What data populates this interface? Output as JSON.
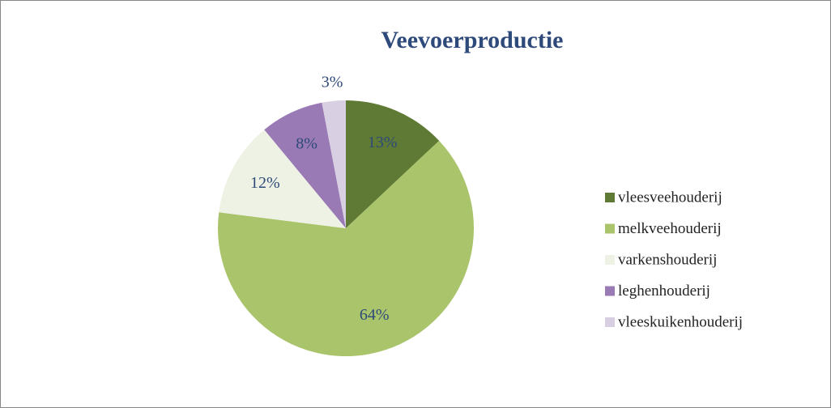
{
  "chart_data": {
    "type": "pie",
    "title": "Veevoerproductie",
    "categories": [
      "vleesveehouderij",
      "melkveehouderij",
      "varkenshouderij",
      "leghenhouderij",
      "vleeskuikenhouderij"
    ],
    "values": [
      13,
      64,
      12,
      8,
      3
    ],
    "value_labels": [
      "13%",
      "64%",
      "12%",
      "8%",
      "3%"
    ],
    "colors": [
      "#5f7a35",
      "#a9c46b",
      "#eef2e4",
      "#9a7ab5",
      "#d9cfe3"
    ],
    "legend": "right"
  }
}
